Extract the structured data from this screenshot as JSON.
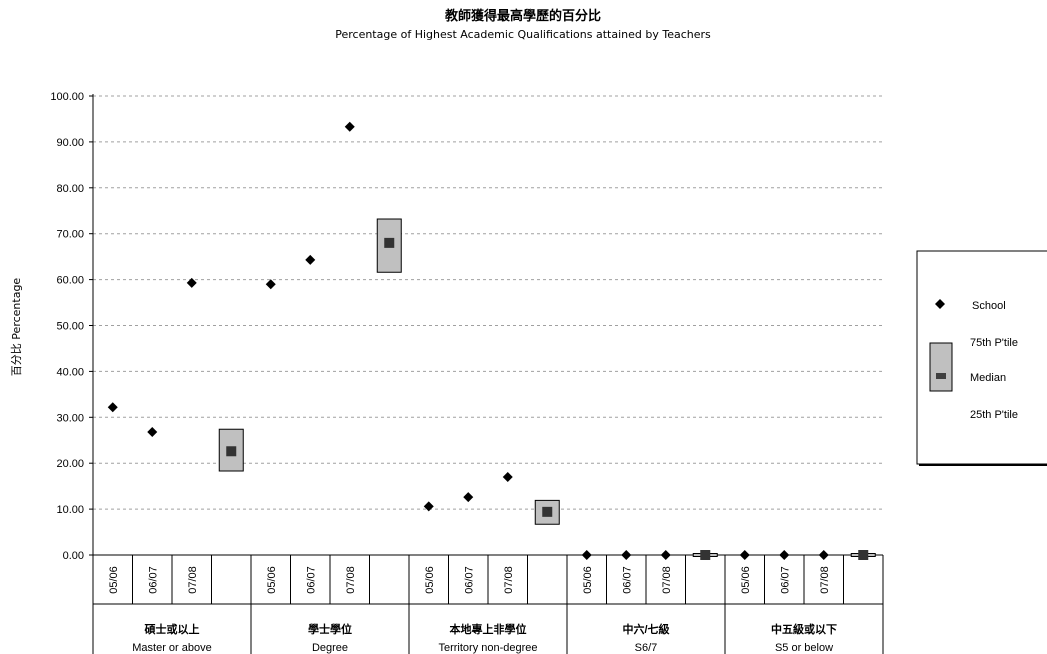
{
  "chart_data": {
    "type": "scatter",
    "title": "教師獲得最高學歷的百分比",
    "subtitle": "Percentage of Highest Academic Qualifications attained by Teachers",
    "ylabel": "百分比 Percentage",
    "ylim": [
      0,
      100
    ],
    "y_ticks": [
      "0.00",
      "10.00",
      "20.00",
      "30.00",
      "40.00",
      "50.00",
      "60.00",
      "70.00",
      "80.00",
      "90.00",
      "100.00"
    ],
    "grid": true,
    "legend_position": "right",
    "years": [
      "05/06",
      "06/07",
      "07/08"
    ],
    "groups": [
      {
        "label_zh": "碩士或以上",
        "label_en": "Master or above",
        "school": [
          32.2,
          26.8,
          59.3
        ],
        "p25": 18.3,
        "median": 22.6,
        "p75": 27.4
      },
      {
        "label_zh": "學士學位",
        "label_en": "Degree",
        "school": [
          59.0,
          64.3,
          93.3
        ],
        "p25": 61.6,
        "median": 68.0,
        "p75": 73.2
      },
      {
        "label_zh": "本地專上非學位",
        "label_en": "Territory non-degree",
        "school": [
          10.6,
          12.6,
          17.0
        ],
        "p25": 6.7,
        "median": 9.4,
        "p75": 11.9
      },
      {
        "label_zh": "中六/七級",
        "label_en": "S6/7",
        "school": [
          0.0,
          0.0,
          0.0
        ],
        "p25": 0.0,
        "median": 0.0,
        "p75": 0.0
      },
      {
        "label_zh": "中五級或以下",
        "label_en": "S5 or below",
        "school": [
          0.0,
          0.0,
          0.0
        ],
        "p25": 0.0,
        "median": 0.0,
        "p75": 0.0
      }
    ],
    "legend": {
      "school": "School",
      "p75": "75th P'tile",
      "median": "Median",
      "p25": "25th P'tile"
    },
    "colors": {
      "marker": "#000000",
      "box_fill": "#c0c0c0",
      "box_stroke": "#000000",
      "grid": "#a0a0a0"
    }
  }
}
